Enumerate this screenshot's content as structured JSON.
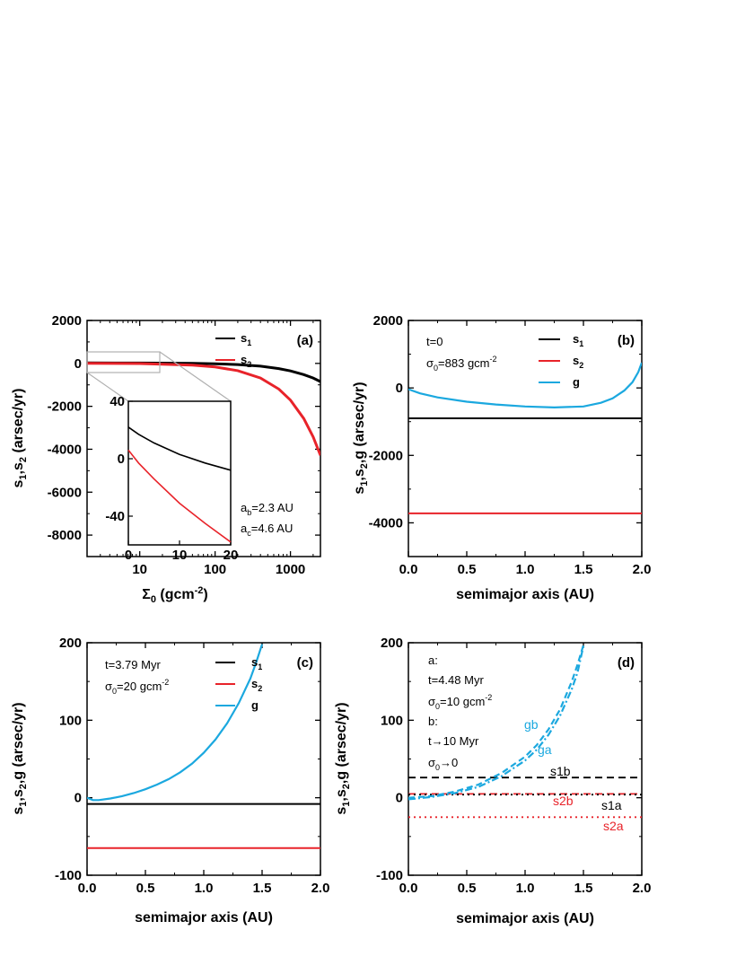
{
  "chart_data": [
    {
      "panel": "(a)",
      "type": "line",
      "x_scale": "log",
      "xlim": [
        2,
        2500
      ],
      "ylim": [
        -9000,
        2000
      ],
      "xticks": [
        10,
        100,
        1000
      ],
      "xtick_labels": [
        "10",
        "100",
        "1000"
      ],
      "yticks": [
        2000,
        0,
        -2000,
        -4000,
        -6000,
        -8000
      ],
      "ytick_labels": [
        "2000",
        "0",
        "-2000",
        "-4000",
        "-6000",
        "-8000"
      ],
      "xlabel": {
        "main": "Σ",
        "sub": "0",
        "rest": " (gcm",
        "sup": "-2",
        "end": ")"
      },
      "ylabel": "s1,s2 (arsec/yr)",
      "legend_position": "top-right",
      "series": [
        {
          "name": "s1",
          "color": "#000000",
          "x": [
            2,
            10,
            50,
            100,
            200,
            400,
            700,
            1000,
            1500,
            2000,
            2500
          ],
          "y": [
            19.9,
            16.6,
            0.2,
            -18,
            -55,
            -129,
            -240,
            -350,
            -520,
            -680,
            -850
          ],
          "legend": {
            "base": "s",
            "sub": "1"
          }
        },
        {
          "name": "s2",
          "color": "#e8232a",
          "x": [
            2,
            10,
            50,
            100,
            200,
            400,
            700,
            1000,
            1500,
            2000,
            2500
          ],
          "y": [
            6.5,
            -8.3,
            -82,
            -168,
            -340,
            -682,
            -1196,
            -1710,
            -2567,
            -3424,
            -4281
          ],
          "legend": {
            "base": "s",
            "sub": "2"
          }
        }
      ],
      "annotations": [
        {
          "base": "a",
          "sub": "b",
          "rest": "=2.3 AU"
        },
        {
          "base": "a",
          "sub": "c",
          "rest": "=4.6 AU"
        }
      ],
      "inset": {
        "type": "line",
        "xlim": [
          0,
          20
        ],
        "ylim": [
          -60,
          40
        ],
        "xticks": [
          0,
          10,
          20
        ],
        "xtick_labels": [
          "0",
          "10",
          "20"
        ],
        "yticks": [
          40,
          0,
          -40
        ],
        "ytick_labels": [
          "40",
          "0",
          "-40"
        ],
        "series": [
          {
            "name": "s1",
            "color": "#000000",
            "x": [
              0,
              2,
              5,
              10,
              15,
              20
            ],
            "y": [
              22,
              17,
              11,
              3,
              -3,
              -8
            ]
          },
          {
            "name": "s2",
            "color": "#e8232a",
            "x": [
              0,
              2,
              5,
              10,
              15,
              20
            ],
            "y": [
              6,
              -3,
              -14,
              -31,
              -45,
              -58
            ]
          }
        ]
      }
    },
    {
      "panel": "(b)",
      "type": "line",
      "xlim": [
        0,
        2
      ],
      "ylim": [
        -5000,
        2000
      ],
      "xticks": [
        0,
        0.5,
        1,
        1.5,
        2
      ],
      "xtick_labels": [
        "0.0",
        "0.5",
        "1.0",
        "1.5",
        "2.0"
      ],
      "yticks": [
        2000,
        0,
        -2000,
        -4000
      ],
      "ytick_labels": [
        "2000",
        "0",
        "-2000",
        "-4000"
      ],
      "xlabel": "semimajor axis (AU)",
      "ylabel": "s1,s2,g (arsec/yr)",
      "legend_position": "top-right",
      "series": [
        {
          "name": "s1",
          "color": "#000000",
          "x": [
            0,
            2
          ],
          "y": [
            -900,
            -900
          ],
          "legend": {
            "base": "s",
            "sub": "1"
          }
        },
        {
          "name": "s2",
          "color": "#e8232a",
          "x": [
            0,
            2
          ],
          "y": [
            -3720,
            -3720
          ],
          "legend": {
            "base": "s",
            "sub": "2"
          }
        },
        {
          "name": "g",
          "color": "#1ba8df",
          "x": [
            0,
            0.1,
            0.25,
            0.5,
            0.75,
            1.0,
            1.25,
            1.5,
            1.65,
            1.75,
            1.85,
            1.92,
            1.97,
            2.0
          ],
          "y": [
            -40,
            -160,
            -280,
            -410,
            -490,
            -550,
            -580,
            -550,
            -440,
            -310,
            -80,
            170,
            470,
            750
          ],
          "legend": {
            "base": "g",
            "sub": ""
          }
        }
      ],
      "annotations": [
        {
          "base": "t=0",
          "sub": "",
          "rest": ""
        },
        {
          "base": "σ",
          "sub": "0",
          "rest": "=883 gcm",
          "sup": "-2"
        }
      ]
    },
    {
      "panel": "(c)",
      "type": "line",
      "xlim": [
        0,
        2
      ],
      "ylim": [
        -100,
        200
      ],
      "xticks": [
        0,
        0.5,
        1,
        1.5,
        2
      ],
      "xtick_labels": [
        "0.0",
        "0.5",
        "1.0",
        "1.5",
        "2.0"
      ],
      "yticks": [
        200,
        100,
        0,
        -100
      ],
      "ytick_labels": [
        "200",
        "100",
        "0",
        "-100"
      ],
      "xlabel": "semimajor axis (AU)",
      "ylabel": "s1,s2,g (arsec/yr)",
      "legend_position": "top-right",
      "series": [
        {
          "name": "s1",
          "color": "#000000",
          "x": [
            0,
            2
          ],
          "y": [
            -8,
            -8
          ],
          "legend": {
            "base": "s",
            "sub": "1"
          }
        },
        {
          "name": "s2",
          "color": "#e8232a",
          "x": [
            0,
            2
          ],
          "y": [
            -65,
            -65
          ],
          "legend": {
            "base": "s",
            "sub": "2"
          }
        },
        {
          "name": "g",
          "color": "#1ba8df",
          "x": [
            0.0,
            0.05,
            0.1,
            0.2,
            0.3,
            0.4,
            0.5,
            0.6,
            0.7,
            0.8,
            0.9,
            1.0,
            1.1,
            1.2,
            1.3,
            1.4,
            1.45,
            1.5
          ],
          "y": [
            0,
            -3,
            -3,
            -1,
            2,
            6,
            11,
            17,
            24,
            33,
            44,
            58,
            75,
            96,
            122,
            154,
            175,
            198
          ],
          "legend": {
            "base": "g",
            "sub": ""
          }
        }
      ],
      "annotations": [
        {
          "base": "t=3.79 Myr",
          "sub": "",
          "rest": ""
        },
        {
          "base": "σ",
          "sub": "0",
          "rest": "=20 gcm",
          "sup": "-2"
        }
      ]
    },
    {
      "panel": "(d)",
      "type": "line",
      "xlim": [
        0,
        2
      ],
      "ylim": [
        -100,
        200
      ],
      "xticks": [
        0,
        0.5,
        1,
        1.5,
        2
      ],
      "xtick_labels": [
        "0.0",
        "0.5",
        "1.0",
        "1.5",
        "2.0"
      ],
      "yticks": [
        200,
        100,
        0,
        -100
      ],
      "ytick_labels": [
        "200",
        "100",
        "0",
        "-100"
      ],
      "xlabel": "semimajor axis (AU)",
      "ylabel": "s1,s2,g (arsec/yr)",
      "series": [
        {
          "name": "s1b",
          "color": "#000000",
          "style": "dashed",
          "x": [
            0,
            2
          ],
          "y": [
            26,
            26
          ]
        },
        {
          "name": "s2b",
          "color": "#e8232a",
          "style": "dashed",
          "x": [
            0,
            2
          ],
          "y": [
            5,
            5
          ]
        },
        {
          "name": "s1a",
          "color": "#000000",
          "style": "dotted",
          "x": [
            0,
            2
          ],
          "y": [
            4,
            4
          ]
        },
        {
          "name": "s2a",
          "color": "#e8232a",
          "style": "dotted",
          "x": [
            0,
            2
          ],
          "y": [
            -25,
            -25
          ]
        },
        {
          "name": "gb",
          "color": "#1ba8df",
          "style": "dashed",
          "x": [
            0,
            0.2,
            0.4,
            0.6,
            0.8,
            1.0,
            1.1,
            1.2,
            1.3,
            1.4,
            1.45,
            1.5
          ],
          "y": [
            0,
            2,
            8,
            17,
            32,
            53,
            68,
            88,
            114,
            150,
            172,
            197
          ]
        },
        {
          "name": "ga",
          "color": "#1ba8df",
          "style": "dashdot",
          "x": [
            0,
            0.2,
            0.4,
            0.6,
            0.8,
            1.0,
            1.1,
            1.2,
            1.3,
            1.4,
            1.45,
            1.5
          ],
          "y": [
            -2,
            1,
            6,
            14,
            28,
            48,
            62,
            81,
            106,
            140,
            162,
            196
          ]
        }
      ],
      "annotations": [
        {
          "base": "a:",
          "sub": "",
          "rest": ""
        },
        {
          "base": "t=4.48 Myr",
          "sub": "",
          "rest": ""
        },
        {
          "base": "σ",
          "sub": "0",
          "rest": "=10 gcm",
          "sup": "-2"
        },
        {
          "base": "b:",
          "sub": "",
          "rest": ""
        },
        {
          "base": "t→10 Myr",
          "sub": "",
          "rest": ""
        },
        {
          "base": "σ",
          "sub": "0",
          "rest": "→0"
        }
      ],
      "series_labels": [
        {
          "text": "gb",
          "color": "#1ba8df"
        },
        {
          "text": "ga",
          "color": "#1ba8df"
        },
        {
          "text": "s1b",
          "color": "#000000"
        },
        {
          "text": "s2b",
          "color": "#e8232a"
        },
        {
          "text": "s1a",
          "color": "#000000"
        },
        {
          "text": "s2a",
          "color": "#e8232a"
        }
      ]
    }
  ]
}
